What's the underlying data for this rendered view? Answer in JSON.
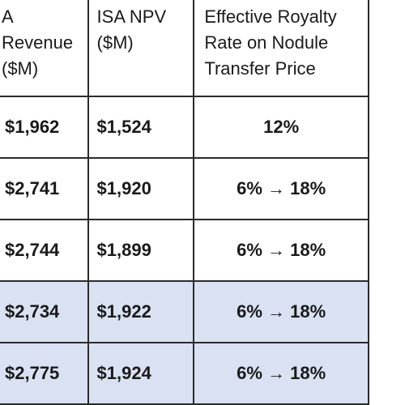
{
  "table": {
    "headers": [
      "A Revenue\n($M)",
      "ISA NPV\n($M)",
      "Effective Royalty\nRate on Nodule\nTransfer Price"
    ],
    "rows": [
      {
        "revenue": "$1,962",
        "npv": "$1,524",
        "royalty": "12%",
        "shaded": false
      },
      {
        "revenue": "$2,741",
        "npv": "$1,920",
        "royalty": "6% → 18%",
        "shaded": false
      },
      {
        "revenue": "$2,744",
        "npv": "$1,899",
        "royalty": "6% → 18%",
        "shaded": false
      },
      {
        "revenue": "$2,734",
        "npv": "$1,922",
        "royalty": "6% → 18%",
        "shaded": true
      },
      {
        "revenue": "$2,775",
        "npv": "$1,924",
        "royalty": "6% → 18%",
        "shaded": true
      }
    ],
    "shade_color": "#d9e1f2"
  }
}
